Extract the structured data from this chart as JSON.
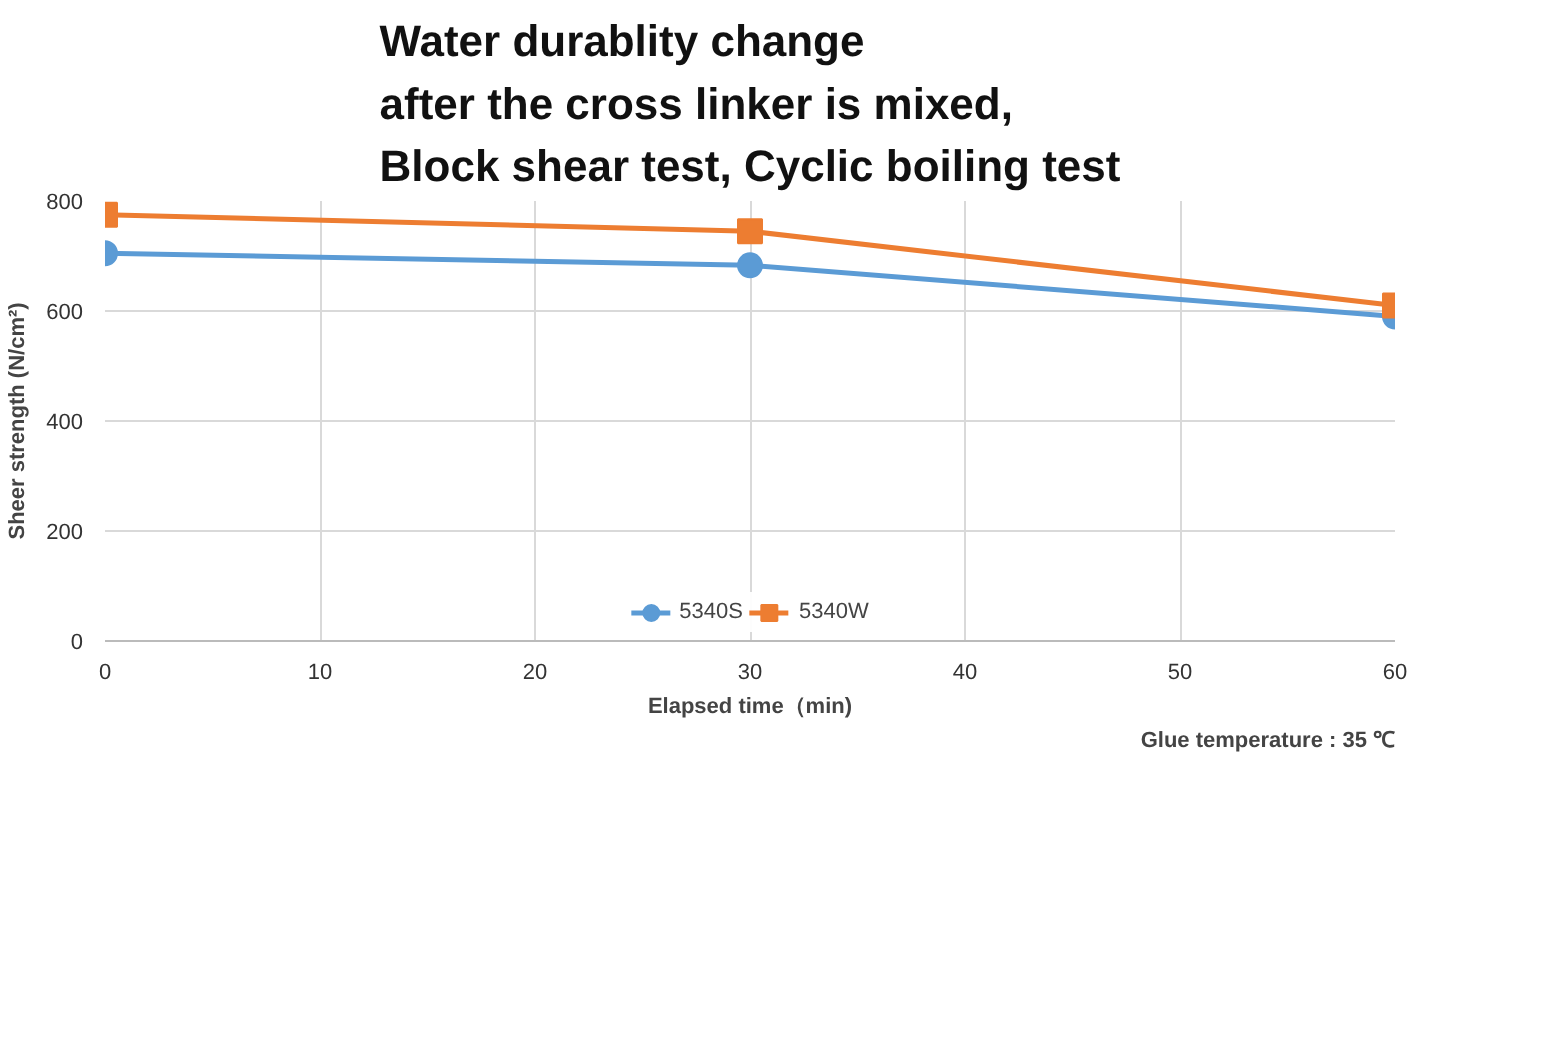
{
  "chart_data": {
    "type": "line",
    "title": "Water durablity change\nafter the cross linker is mixed,\nBlock shear test, Cyclic boiling test",
    "xlabel": "Elapsed time（min)",
    "ylabel": "Sheer strength (N/cm²)",
    "annotations": [
      "Glue temperature : 35 ℃"
    ],
    "x": [
      0,
      30,
      60
    ],
    "series": [
      {
        "name": "5340S",
        "color": "#5b9bd5",
        "marker": "circle",
        "values": [
          705,
          683,
          590
        ]
      },
      {
        "name": "5340W",
        "color": "#ed7d31",
        "marker": "square",
        "values": [
          775,
          745,
          610
        ]
      }
    ],
    "xlim": [
      0,
      60
    ],
    "xticks": [
      0,
      10,
      20,
      30,
      40,
      50,
      60
    ],
    "ylim": [
      0,
      800
    ],
    "yticks": [
      0,
      200,
      400,
      600,
      800
    ],
    "grid": true,
    "legend": "bottom",
    "line_style": "solid"
  }
}
